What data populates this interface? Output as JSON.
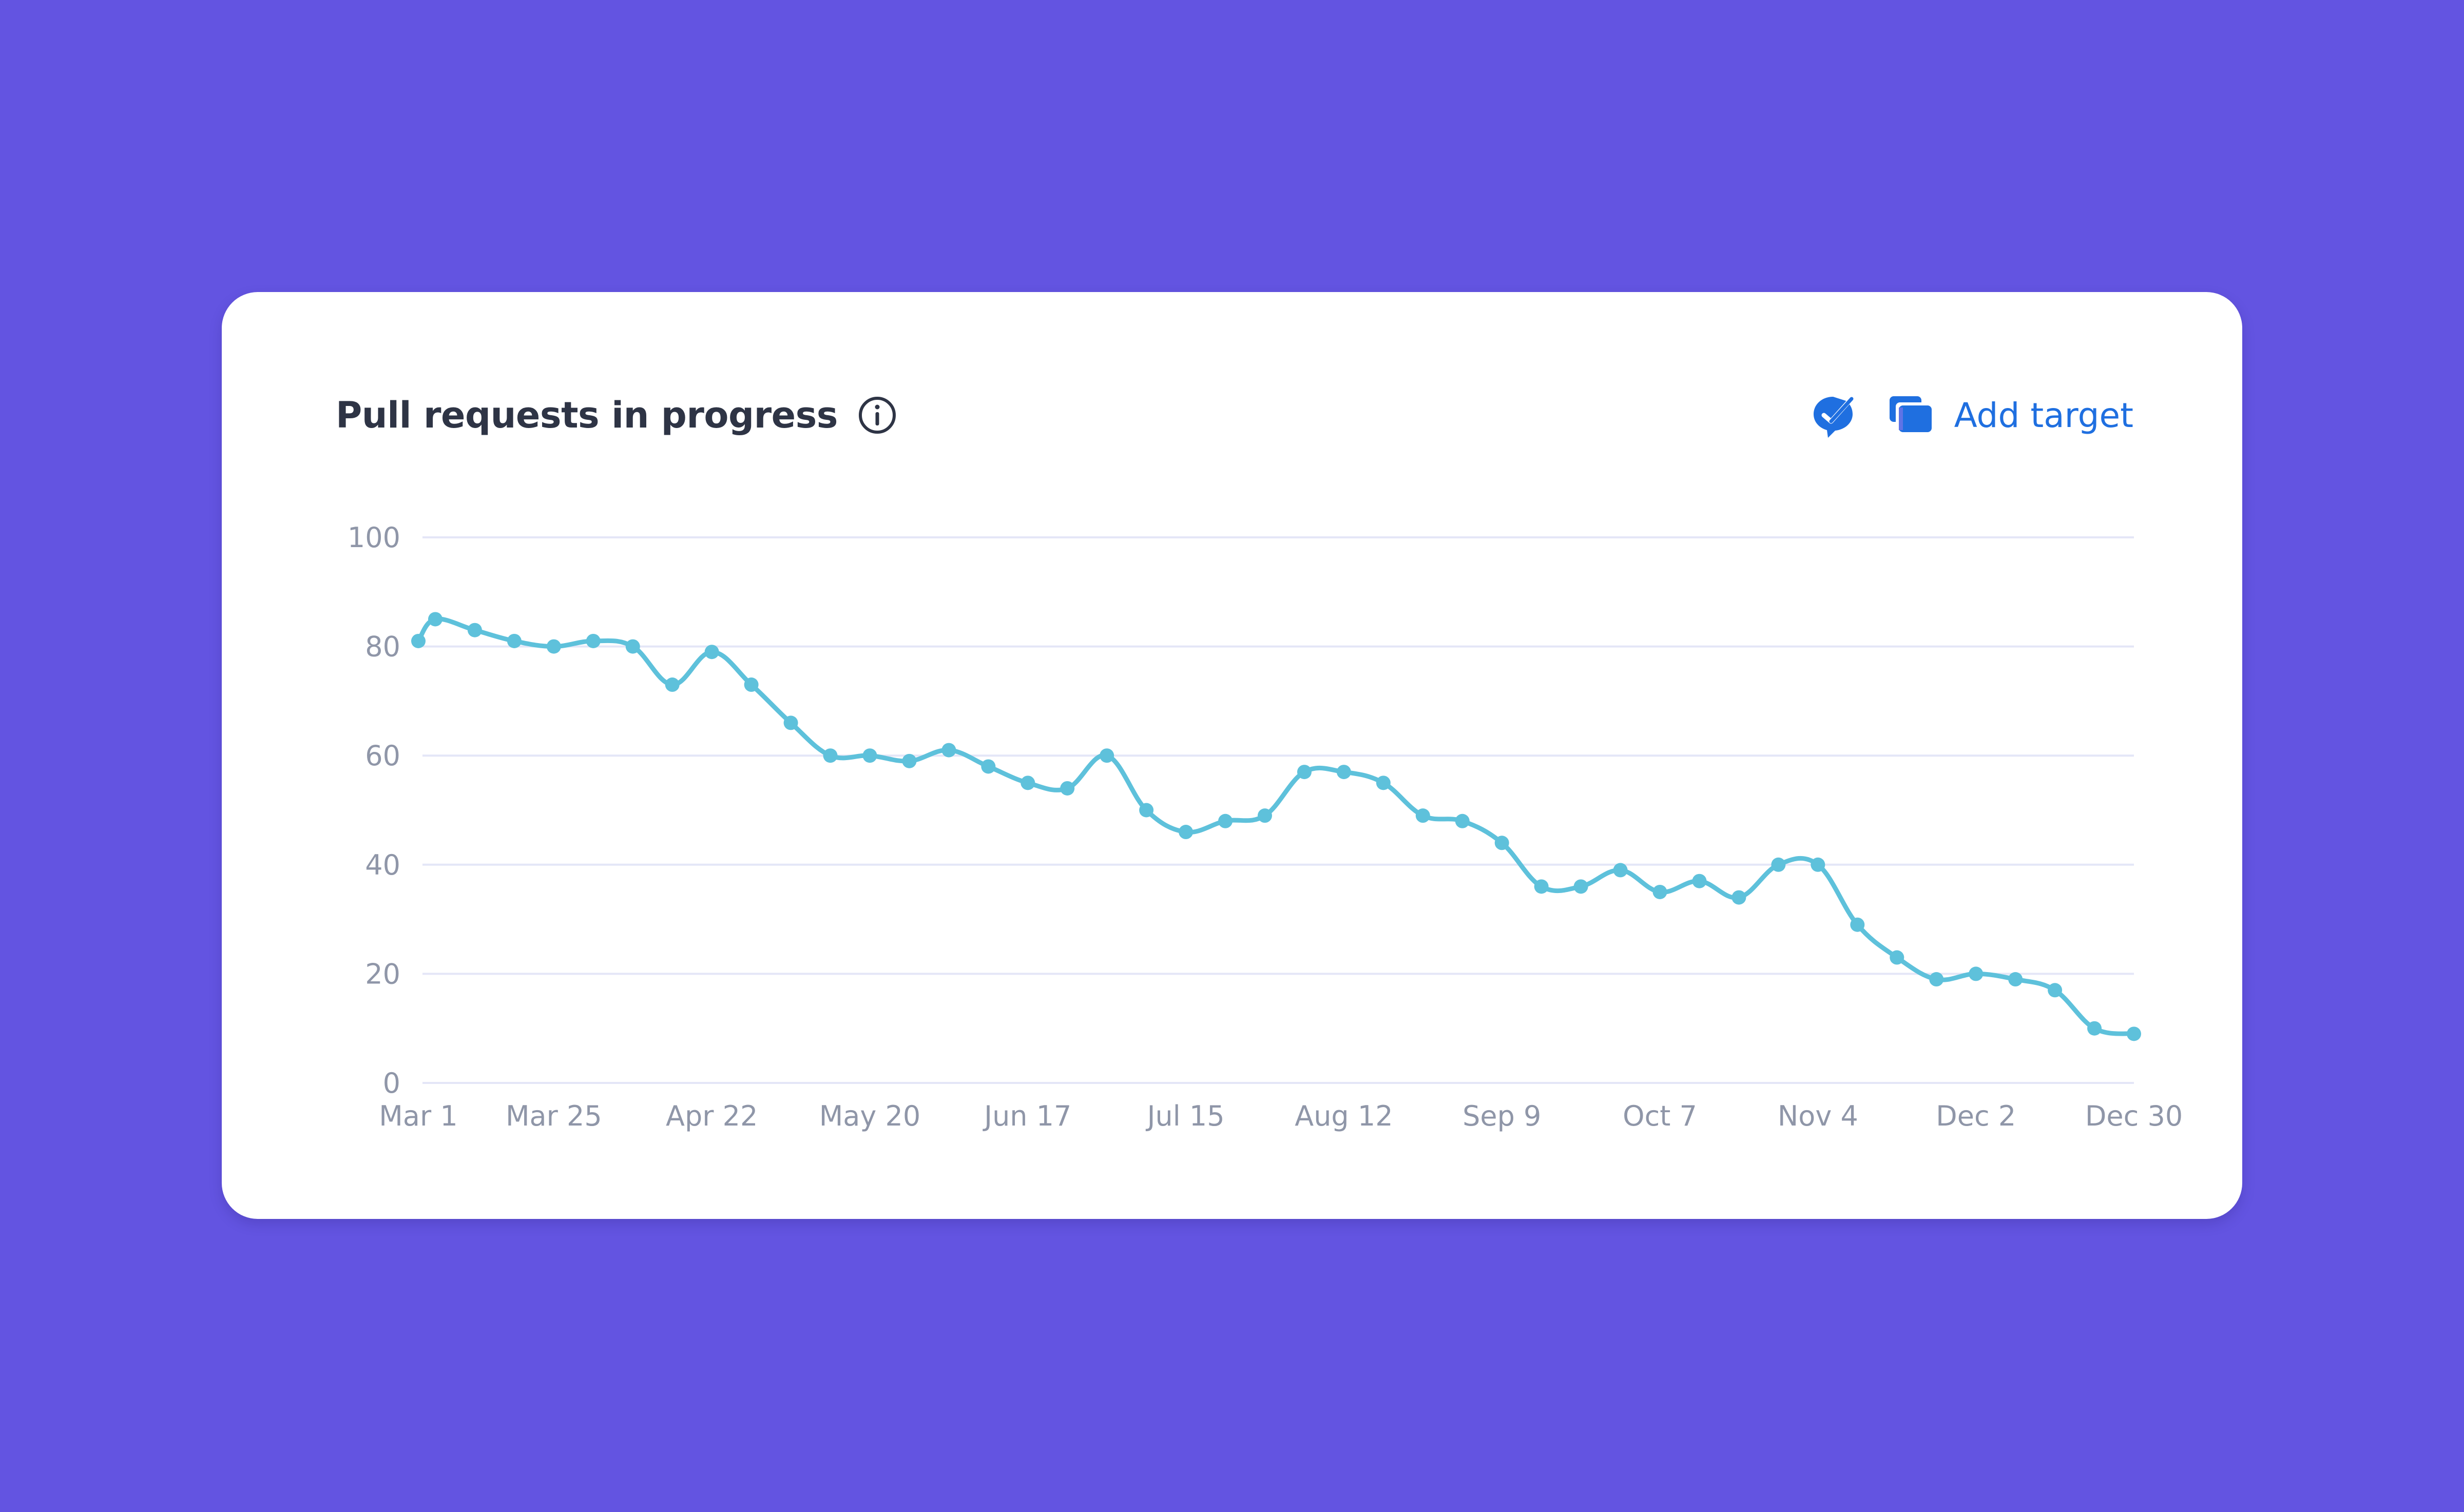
{
  "colors": {
    "background": "#6354e1",
    "card": "#ffffff",
    "accent": "#1f6fe0",
    "line": "#5ec1db",
    "grid": "#e4e6f7",
    "title": "#2e3445",
    "axis_text": "#8f96a8"
  },
  "header": {
    "title": "Pull requests in progress",
    "info_icon": "info-icon",
    "edit_icon": "edit-check-icon",
    "add_target_icon": "cards-icon",
    "add_target_label": "Add target"
  },
  "chart_data": {
    "type": "line",
    "x_start": "Mar 1",
    "x_end": "Dec 30",
    "x_ticks": [
      "Mar 1",
      "Mar 25",
      "Apr 22",
      "May 20",
      "Jun 17",
      "Jul 15",
      "Aug 12",
      "Sep 9",
      "Oct 7",
      "Nov 4",
      "Dec 2",
      "Dec 30"
    ],
    "y_ticks": [
      0,
      20,
      40,
      60,
      80,
      100
    ],
    "ylim": [
      0,
      100
    ],
    "grid": true,
    "series": [
      {
        "x": [
          "Mar 1",
          "Mar 4",
          "Mar 11",
          "Mar 18",
          "Mar 25",
          "Apr 1",
          "Apr 8",
          "Apr 15",
          "Apr 22",
          "Apr 29",
          "May 6",
          "May 13",
          "May 20",
          "May 27",
          "Jun 3",
          "Jun 10",
          "Jun 17",
          "Jun 24",
          "Jul 1",
          "Jul 8",
          "Jul 15",
          "Jul 22",
          "Jul 29",
          "Aug 5",
          "Aug 12",
          "Aug 19",
          "Aug 26",
          "Sep 2",
          "Sep 9",
          "Sep 16",
          "Sep 23",
          "Sep 30",
          "Oct 7",
          "Oct 14",
          "Oct 21",
          "Oct 28",
          "Nov 4",
          "Nov 11",
          "Nov 18",
          "Nov 25",
          "Dec 2",
          "Dec 9",
          "Dec 16",
          "Dec 23",
          "Dec 30"
        ],
        "values": [
          81,
          85,
          83,
          81,
          80,
          81,
          80,
          73,
          79,
          73,
          66,
          60,
          60,
          59,
          61,
          58,
          55,
          54,
          60,
          50,
          46,
          48,
          49,
          57,
          57,
          55,
          49,
          48,
          44,
          36,
          36,
          39,
          35,
          37,
          34,
          40,
          40,
          29,
          23,
          19,
          20,
          19,
          17,
          10,
          9
        ]
      }
    ]
  }
}
